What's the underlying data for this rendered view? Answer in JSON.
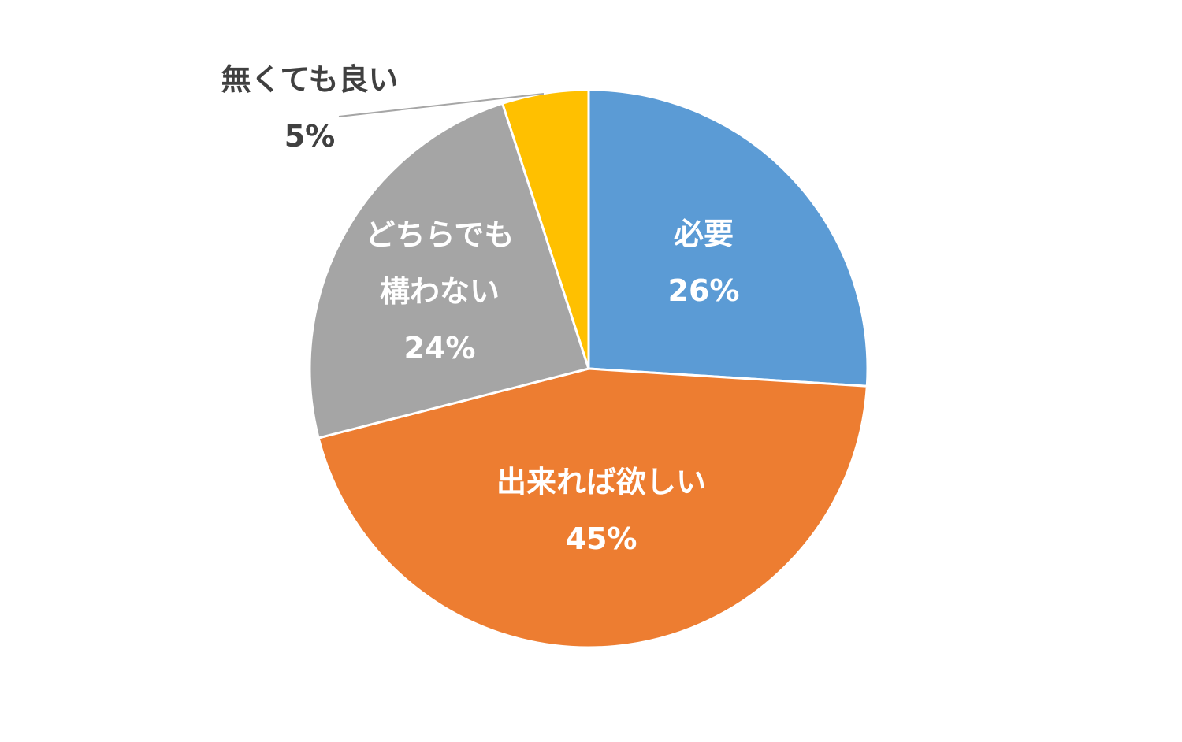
{
  "chart_data": {
    "type": "pie",
    "slices": [
      {
        "label": "必要",
        "label_lines": [
          "必要"
        ],
        "percent_text": "26%",
        "value": 26,
        "color": "#5B9BD5",
        "text_color": "#ffffff",
        "label_placement": "inside"
      },
      {
        "label": "出来れば欲しい",
        "label_lines": [
          "出来れば欲しい"
        ],
        "percent_text": "45%",
        "value": 45,
        "color": "#ED7D31",
        "text_color": "#ffffff",
        "label_placement": "inside"
      },
      {
        "label": "どちらでも構わない",
        "label_lines": [
          "どちらでも",
          "構わない"
        ],
        "percent_text": "24%",
        "value": 24,
        "color": "#A5A5A5",
        "text_color": "#ffffff",
        "label_placement": "inside"
      },
      {
        "label": "無くても良い",
        "label_lines": [
          "無くても良い"
        ],
        "percent_text": "5%",
        "value": 5,
        "color": "#FFC000",
        "text_color": "#404040",
        "label_placement": "outside-with-leader"
      }
    ],
    "start_angle": "12 o'clock",
    "direction": "clockwise",
    "legend": "none",
    "slice_border_color": "#ffffff",
    "leader_line_color": "#A6A6A6"
  }
}
